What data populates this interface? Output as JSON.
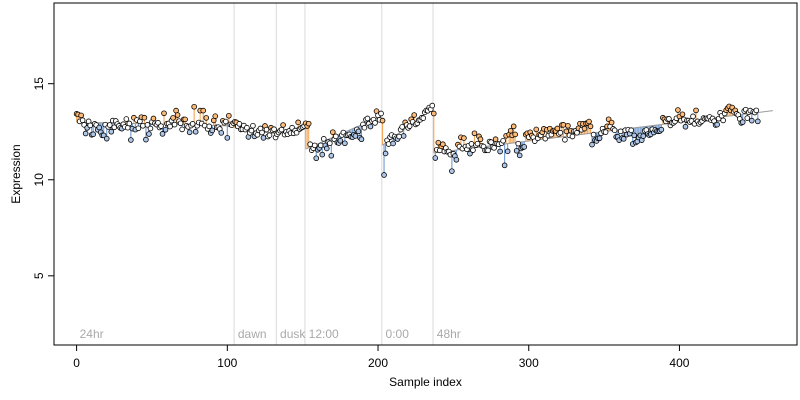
{
  "chart_data": {
    "type": "scatter",
    "title": "",
    "xlabel": "Sample index",
    "ylabel": "Expression",
    "xlim": [
      -15,
      478
    ],
    "ylim": [
      1.4,
      19.2
    ],
    "x_ticks": [
      0,
      100,
      200,
      300,
      400
    ],
    "y_ticks": [
      5,
      10,
      15
    ],
    "grid": false,
    "legend": "none",
    "colors": {
      "point_fill_below": "#aec7e8",
      "point_fill_above": "#ffbb78",
      "point_fill_neutral": "#ffffff",
      "stem_below": "#6f9ad3",
      "stem_above": "#f5a85a",
      "boundary_line": "#d9d9d9",
      "segment_label": "#a9a9a9"
    },
    "segments": [
      {
        "label": "24hr",
        "start": 0,
        "end": 104,
        "fit": [
          13.0,
          12.8
        ]
      },
      {
        "label": "dawn",
        "start": 105,
        "end": 132,
        "fit": [
          12.7,
          12.4
        ]
      },
      {
        "label": "dusk",
        "start": 133,
        "end": 151,
        "fit": [
          12.4,
          12.8
        ]
      },
      {
        "label": "12:00",
        "start": 152,
        "end": 202,
        "fit": [
          11.6,
          13.3
        ]
      },
      {
        "label": "0:00",
        "start": 203,
        "end": 236,
        "fit": [
          11.8,
          13.7
        ]
      },
      {
        "label": "48hr",
        "start": 237,
        "end": 462,
        "fit": [
          11.4,
          13.6
        ]
      }
    ],
    "y_values": [
      13.43,
      13.4,
      13.04,
      13.35,
      13.1,
      12.86,
      12.41,
      12.7,
      13.04,
      12.83,
      12.34,
      12.37,
      12.91,
      12.85,
      12.6,
      12.72,
      12.47,
      12.31,
      12.31,
      12.87,
      12.14,
      12.75,
      12.85,
      12.5,
      13.08,
      12.73,
      13.06,
      12.9,
      12.8,
      12.7,
      12.66,
      12.89,
      12.75,
      13.16,
      12.71,
      12.93,
      12.07,
      12.66,
      13.23,
      12.61,
      13.11,
      12.68,
      13.04,
      13.26,
      12.81,
      13.23,
      12.09,
      12.86,
      12.38,
      12.67,
      13.01,
      13.19,
      12.94,
      12.87,
      12.97,
      12.72,
      12.79,
      12.39,
      13.46,
      12.6,
      12.92,
      12.93,
      12.77,
      13.08,
      13.22,
      12.87,
      13.6,
      13.37,
      13.05,
      12.94,
      12.62,
      13.14,
      13.14,
      12.81,
      12.75,
      12.47,
      12.82,
      12.91,
      13.8,
      12.5,
      12.81,
      12.98,
      13.6,
      12.93,
      13.6,
      12.82,
      13.22,
      12.65,
      12.78,
      12.43,
      12.57,
      13.09,
      13.31,
      12.73,
      12.74,
      12.64,
      12.44,
      13.07,
      12.97,
      13.03,
      12.18,
      13.33,
      12.88,
      12.84,
      12.95,
      13.02,
      12.99,
      12.78,
      12.91,
      12.62,
      12.63,
      12.82,
      12.61,
      12.71,
      12.23,
      12.44,
      12.56,
      12.81,
      12.26,
      12.42,
      12.34,
      12.57,
      12.67,
      12.46,
      12.18,
      12.8,
      12.61,
      12.25,
      12.32,
      12.71,
      12.58,
      12.63,
      12.2,
      12.37,
      12.46,
      12.55,
      12.61,
      12.85,
      12.35,
      12.49,
      12.37,
      12.54,
      12.43,
      12.71,
      12.42,
      12.56,
      12.45,
      12.99,
      12.64,
      12.7,
      12.74,
      12.8,
      12.94,
      12.8,
      12.92,
      11.85,
      11.54,
      11.64,
      11.79,
      11.12,
      11.56,
      11.65,
      11.79,
      11.31,
      12.13,
      11.79,
      11.63,
      11.96,
      11.9,
      11.25,
      12.48,
      12.11,
      12.26,
      11.94,
      11.91,
      12.03,
      12.33,
      12.46,
      11.9,
      12.31,
      12.33,
      12.36,
      12.24,
      12.22,
      12.34,
      12.28,
      12.62,
      12.52,
      12.19,
      12.11,
      12.88,
      12.71,
      13.13,
      13.19,
      12.92,
      12.77,
      13.06,
      13.13,
      12.96,
      13.57,
      13.35,
      13.12,
      13.45,
      13.08,
      10.25,
      11.37,
      12.05,
      11.86,
      12.22,
      12.33,
      11.89,
      12.25,
      12.16,
      12.12,
      12.25,
      12.61,
      12.75,
      12.28,
      12.99,
      12.85,
      12.7,
      12.79,
      13.15,
      13.01,
      13.37,
      12.88,
      12.94,
      13.1,
      13.12,
      13.23,
      13.21,
      13.51,
      13.61,
      13.59,
      13.76,
      13.67,
      13.86,
      13.45,
      11.13,
      11.56,
      11.93,
      11.53,
      11.74,
      11.85,
      11.47,
      11.65,
      11.46,
      11.47,
      11.31,
      10.45,
      11.35,
      11.24,
      11.04,
      11.83,
      11.73,
      12.21,
      11.62,
      12.17,
      11.73,
      11.59,
      11.77,
      11.36,
      11.87,
      11.54,
      12.42,
      11.8,
      11.88,
      12.26,
      12.11,
      11.77,
      11.73,
      11.53,
      11.54,
      11.53,
      11.99,
      11.96,
      11.7,
      11.66,
      12.11,
      11.88,
      11.85,
      11.47,
      11.9,
      12.03,
      10.75,
      12.29,
      11.48,
      12.35,
      12.55,
      12.31,
      12.78,
      12.36,
      11.51,
      11.88,
      11.27,
      11.63,
      11.69,
      11.71,
      12.35,
      12.42,
      12.22,
      12.47,
      12.3,
      12.21,
      12.01,
      12.62,
      12.16,
      12.34,
      12.32,
      12.47,
      12.65,
      12.14,
      12.6,
      12.3,
      12.66,
      12.35,
      12.54,
      12.57,
      12.53,
      12.67,
      12.39,
      12.45,
      12.85,
      12.86,
      12.08,
      12.52,
      12.81,
      12.31,
      12.55,
      12.25,
      12.53,
      12.54,
      12.45,
      12.68,
      12.92,
      12.6,
      12.91,
      12.66,
      12.93,
      12.96,
      13.03,
      12.78,
      11.83,
      12.35,
      12.06,
      12.02,
      12.16,
      12.16,
      12.42,
      12.66,
      12.5,
      12.48,
      12.78,
      13.15,
      12.77,
      12.98,
      12.65,
      12.58,
      12.23,
      12.23,
      12.06,
      12.52,
      12.17,
      12.13,
      12.58,
      12.35,
      12.6,
      12.4,
      12.58,
      11.86,
      12.31,
      11.94,
      11.99,
      12.2,
      12.31,
      12.06,
      12.27,
      12.55,
      12.59,
      12.38,
      12.32,
      12.37,
      12.63,
      12.46,
      12.59,
      12.54,
      12.52,
      12.54,
      12.61,
      13.23,
      13.15,
      13.04,
      13.16,
      13.17,
      12.83,
      12.97,
      12.96,
      13.03,
      13.2,
      13.63,
      13.29,
      13.08,
      13.41,
      13.14,
      12.76,
      13.09,
      13.08,
      13.0,
      13.06,
      13.3,
      12.91,
      13.61,
      13.04,
      12.91,
      12.99,
      13.06,
      13.21,
      13.17,
      13.2,
      13.18,
      13.27,
      13.1,
      13.19,
      13.05,
      12.85,
      12.87,
      13.18,
      13.49,
      13.33,
      13.09,
      13.45,
      13.62,
      13.73,
      13.82,
      13.61,
      13.76,
      13.54,
      13.61,
      13.43,
      13.37,
      13.17,
      12.96,
      13.0,
      13.58,
      13.65,
      13.21,
      13.52,
      13.6,
      13.08,
      13.54,
      13.5,
      13.61,
      13.04
    ]
  }
}
